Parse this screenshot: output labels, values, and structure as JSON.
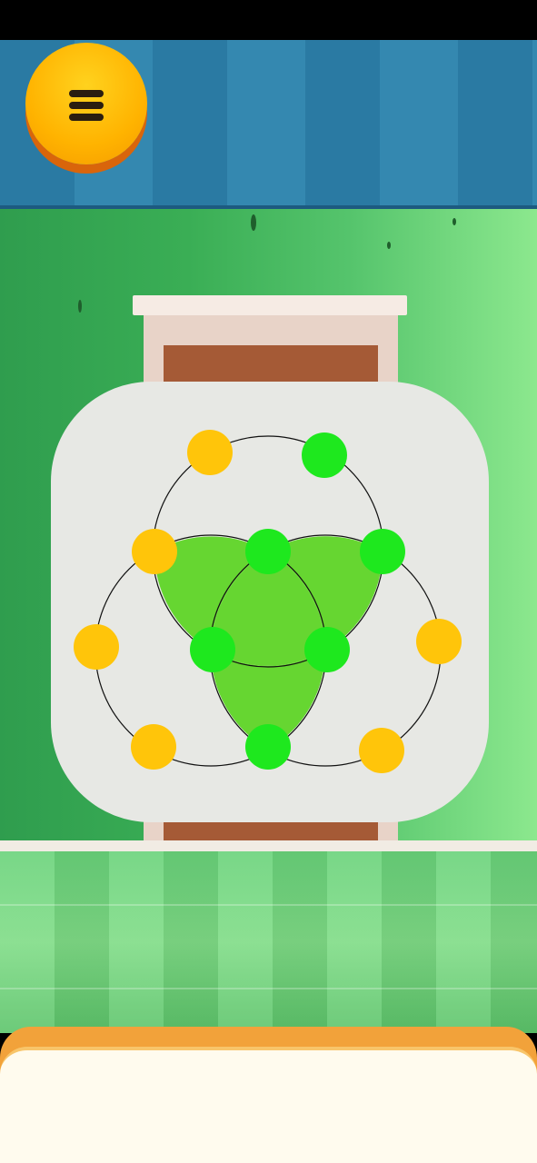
{
  "header": {
    "menu_icon": "hamburger-menu-icon"
  },
  "puzzle": {
    "filled_color": "#66d631",
    "colors": {
      "green": "#1ee81e",
      "yellow": "#ffc50a"
    },
    "nodes": [
      {
        "id": "top-left",
        "color": "yellow"
      },
      {
        "id": "top-right",
        "color": "green"
      },
      {
        "id": "upper-left",
        "color": "yellow"
      },
      {
        "id": "upper-center",
        "color": "green"
      },
      {
        "id": "upper-right",
        "color": "green"
      },
      {
        "id": "left",
        "color": "yellow"
      },
      {
        "id": "center-left",
        "color": "green"
      },
      {
        "id": "center-right",
        "color": "green"
      },
      {
        "id": "right",
        "color": "yellow"
      },
      {
        "id": "bottom-left",
        "color": "yellow"
      },
      {
        "id": "bottom-center",
        "color": "green"
      },
      {
        "id": "bottom-right",
        "color": "yellow"
      }
    ]
  }
}
